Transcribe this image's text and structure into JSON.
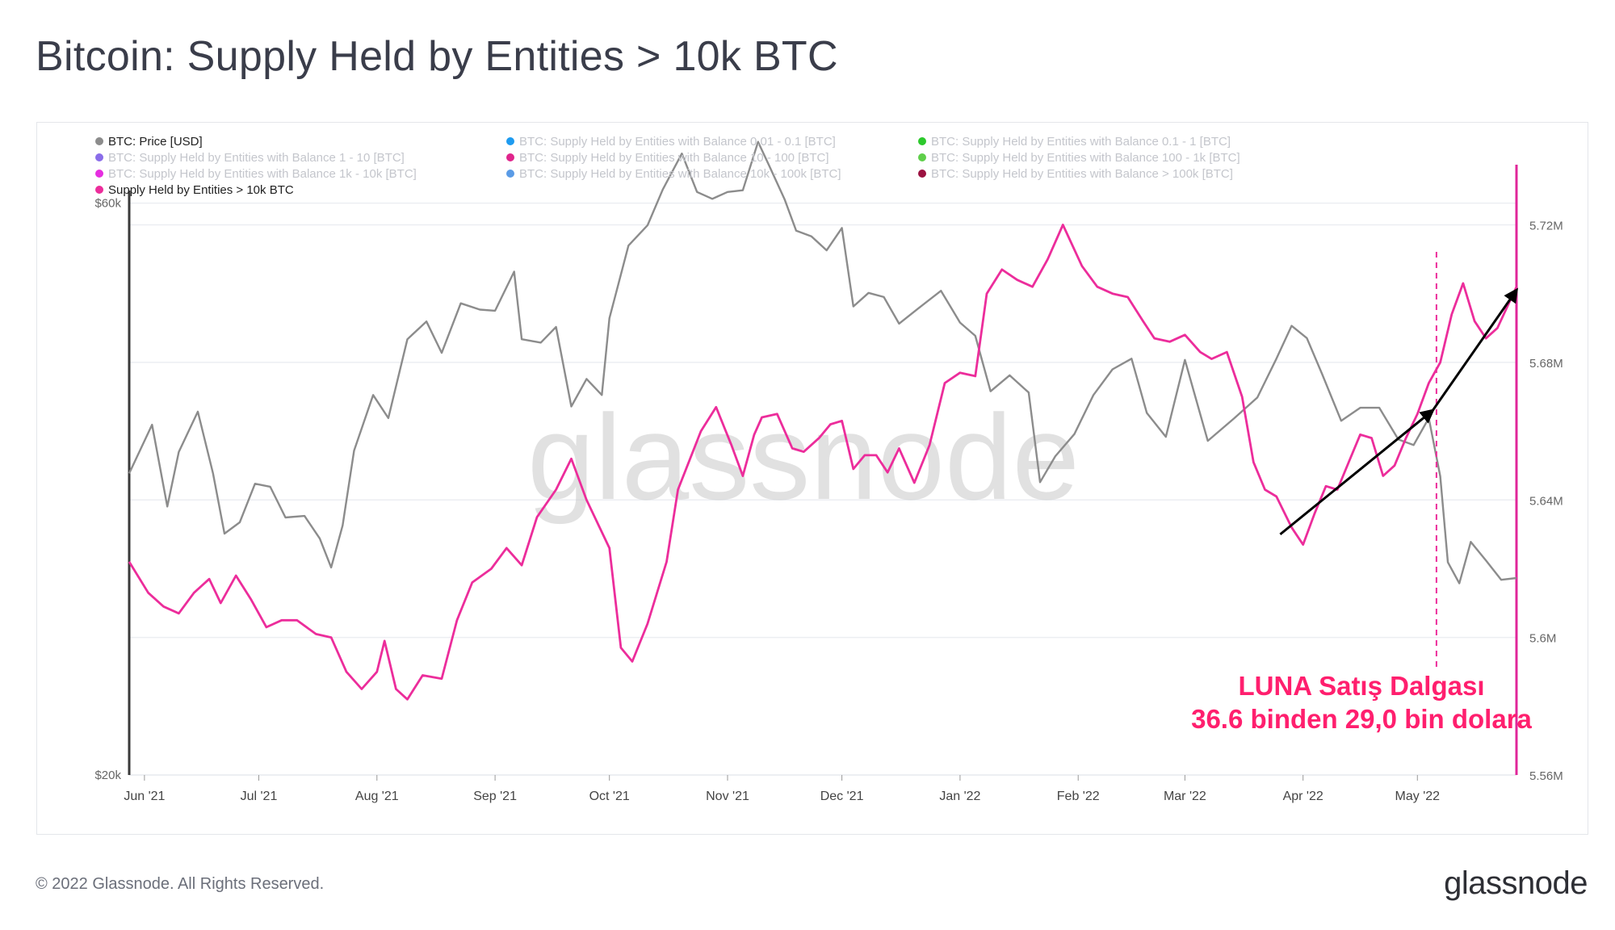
{
  "title": "Bitcoin: Supply Held by Entities > 10k BTC",
  "footer": "© 2022 Glassnode. All Rights Reserved.",
  "logo": "glassnode",
  "watermark": "glassnode",
  "annotation": {
    "line1": "LUNA Satış Dalgası",
    "line2": "36.6 binden 29,0 bin dolara",
    "color": "#ff1f6e"
  },
  "colors": {
    "price": "#8c8c8c",
    "supply": "#ec2d9b",
    "grid": "#eceef2",
    "axis": "#3a3a3a",
    "right_axis": "#e0279a"
  },
  "chart_data": {
    "type": "line",
    "title": "Bitcoin: Supply Held by Entities > 10k BTC",
    "x_range": [
      "2021-05-28",
      "2022-05-27"
    ],
    "x_ticks": [
      {
        "label": "Jun '21",
        "date": "2021-06-01"
      },
      {
        "label": "Jul '21",
        "date": "2021-07-01"
      },
      {
        "label": "Aug '21",
        "date": "2021-08-01"
      },
      {
        "label": "Sep '21",
        "date": "2021-09-01"
      },
      {
        "label": "Oct '21",
        "date": "2021-10-01"
      },
      {
        "label": "Nov '21",
        "date": "2021-11-01"
      },
      {
        "label": "Dec '21",
        "date": "2021-12-01"
      },
      {
        "label": "Jan '22",
        "date": "2022-01-01"
      },
      {
        "label": "Feb '22",
        "date": "2022-02-01"
      },
      {
        "label": "Mar '22",
        "date": "2022-03-01"
      },
      {
        "label": "Apr '22",
        "date": "2022-04-01"
      },
      {
        "label": "May '22",
        "date": "2022-05-01"
      }
    ],
    "y_left": {
      "label": "BTC: Price [USD]",
      "scale": "log",
      "ticks": [
        {
          "label": "$20k",
          "value": 20000
        },
        {
          "label": "$60k",
          "value": 60000
        }
      ],
      "range": [
        20000,
        64600
      ]
    },
    "y_right": {
      "label": "Supply Held by Entities > 10k BTC",
      "ticks": [
        {
          "label": "5.56M",
          "value": 5.56
        },
        {
          "label": "5.6M",
          "value": 5.6
        },
        {
          "label": "5.64M",
          "value": 5.64
        },
        {
          "label": "5.68M",
          "value": 5.68
        },
        {
          "label": "5.72M",
          "value": 5.72
        }
      ],
      "range": [
        5.56,
        5.7375
      ]
    },
    "legend": [
      {
        "label": "BTC: Price [USD]",
        "color": "#8c8c8c",
        "active": true
      },
      {
        "label": "BTC: Supply Held by Entities with Balance 0.01 - 0.1 [BTC]",
        "color": "#1e9bf0",
        "active": false
      },
      {
        "label": "BTC: Supply Held by Entities with Balance 0.1 - 1 [BTC]",
        "color": "#2cc92c",
        "active": false
      },
      {
        "label": "BTC: Supply Held by Entities with Balance 1 - 10 [BTC]",
        "color": "#8a6de9",
        "active": false
      },
      {
        "label": "BTC: Supply Held by Entities with Balance 10 - 100 [BTC]",
        "color": "#e0258c",
        "active": false
      },
      {
        "label": "BTC: Supply Held by Entities with Balance 100 - 1k [BTC]",
        "color": "#5fcf4a",
        "active": false
      },
      {
        "label": "BTC: Supply Held by Entities with Balance 1k - 10k [BTC]",
        "color": "#e62ee0",
        "active": false
      },
      {
        "label": "BTC: Supply Held by Entities with Balance 10k - 100k [BTC]",
        "color": "#5a9be6",
        "active": false
      },
      {
        "label": "BTC: Supply Held by Entities with Balance > 100k [BTC]",
        "color": "#9b1140",
        "active": false
      },
      {
        "label": "Supply Held by Entities > 10k BTC",
        "color": "#ec2d9b",
        "active": true
      }
    ],
    "series": [
      {
        "name": "BTC: Price [USD]",
        "axis": "left",
        "color": "#8c8c8c",
        "points": [
          [
            "2021-05-28",
            35700
          ],
          [
            "2021-06-03",
            39200
          ],
          [
            "2021-06-07",
            33500
          ],
          [
            "2021-06-10",
            37200
          ],
          [
            "2021-06-15",
            40200
          ],
          [
            "2021-06-19",
            35700
          ],
          [
            "2021-06-22",
            31800
          ],
          [
            "2021-06-26",
            32500
          ],
          [
            "2021-06-30",
            35000
          ],
          [
            "2021-07-04",
            34800
          ],
          [
            "2021-07-08",
            32800
          ],
          [
            "2021-07-13",
            32900
          ],
          [
            "2021-07-17",
            31500
          ],
          [
            "2021-07-20",
            29800
          ],
          [
            "2021-07-23",
            32300
          ],
          [
            "2021-07-26",
            37300
          ],
          [
            "2021-07-31",
            41500
          ],
          [
            "2021-08-04",
            39700
          ],
          [
            "2021-08-09",
            46200
          ],
          [
            "2021-08-14",
            47800
          ],
          [
            "2021-08-18",
            45000
          ],
          [
            "2021-08-23",
            49500
          ],
          [
            "2021-08-28",
            48900
          ],
          [
            "2021-09-01",
            48800
          ],
          [
            "2021-09-06",
            52600
          ],
          [
            "2021-09-08",
            46200
          ],
          [
            "2021-09-13",
            45900
          ],
          [
            "2021-09-17",
            47300
          ],
          [
            "2021-09-21",
            40600
          ],
          [
            "2021-09-25",
            42800
          ],
          [
            "2021-09-29",
            41500
          ],
          [
            "2021-10-01",
            48100
          ],
          [
            "2021-10-06",
            55300
          ],
          [
            "2021-10-11",
            57500
          ],
          [
            "2021-10-15",
            61600
          ],
          [
            "2021-10-20",
            66000
          ],
          [
            "2021-10-24",
            61300
          ],
          [
            "2021-10-28",
            60500
          ],
          [
            "2021-11-01",
            61300
          ],
          [
            "2021-11-05",
            61500
          ],
          [
            "2021-11-09",
            67500
          ],
          [
            "2021-11-12",
            64400
          ],
          [
            "2021-11-16",
            60400
          ],
          [
            "2021-11-19",
            56900
          ],
          [
            "2021-11-23",
            56300
          ],
          [
            "2021-11-27",
            54800
          ],
          [
            "2021-12-01",
            57200
          ],
          [
            "2021-12-04",
            49200
          ],
          [
            "2021-12-08",
            50500
          ],
          [
            "2021-12-12",
            50100
          ],
          [
            "2021-12-16",
            47600
          ],
          [
            "2021-12-21",
            49000
          ],
          [
            "2021-12-27",
            50700
          ],
          [
            "2022-01-01",
            47700
          ],
          [
            "2022-01-05",
            46500
          ],
          [
            "2022-01-09",
            41800
          ],
          [
            "2022-01-14",
            43100
          ],
          [
            "2022-01-19",
            41700
          ],
          [
            "2022-01-22",
            35100
          ],
          [
            "2022-01-26",
            36900
          ],
          [
            "2022-01-31",
            38500
          ],
          [
            "2022-02-05",
            41500
          ],
          [
            "2022-02-10",
            43600
          ],
          [
            "2022-02-15",
            44500
          ],
          [
            "2022-02-19",
            40100
          ],
          [
            "2022-02-24",
            38300
          ],
          [
            "2022-03-01",
            44400
          ],
          [
            "2022-03-07",
            38000
          ],
          [
            "2022-03-14",
            39700
          ],
          [
            "2022-03-20",
            41300
          ],
          [
            "2022-03-25",
            44500
          ],
          [
            "2022-03-29",
            47400
          ],
          [
            "2022-04-02",
            46300
          ],
          [
            "2022-04-06",
            43200
          ],
          [
            "2022-04-11",
            39500
          ],
          [
            "2022-04-16",
            40500
          ],
          [
            "2022-04-21",
            40500
          ],
          [
            "2022-04-26",
            38100
          ],
          [
            "2022-04-30",
            37700
          ],
          [
            "2022-05-04",
            39700
          ],
          [
            "2022-05-07",
            35500
          ],
          [
            "2022-05-09",
            30100
          ],
          [
            "2022-05-12",
            28900
          ],
          [
            "2022-05-15",
            31300
          ],
          [
            "2022-05-19",
            30200
          ],
          [
            "2022-05-23",
            29100
          ],
          [
            "2022-05-27",
            29200
          ]
        ]
      },
      {
        "name": "Supply Held by Entities > 10k BTC",
        "axis": "right",
        "color": "#ec2d9b",
        "points": [
          [
            "2021-05-28",
            5.622
          ],
          [
            "2021-06-02",
            5.613
          ],
          [
            "2021-06-06",
            5.609
          ],
          [
            "2021-06-10",
            5.607
          ],
          [
            "2021-06-14",
            5.613
          ],
          [
            "2021-06-18",
            5.617
          ],
          [
            "2021-06-21",
            5.61
          ],
          [
            "2021-06-25",
            5.618
          ],
          [
            "2021-06-29",
            5.611
          ],
          [
            "2021-07-03",
            5.603
          ],
          [
            "2021-07-07",
            5.605
          ],
          [
            "2021-07-11",
            5.605
          ],
          [
            "2021-07-16",
            5.601
          ],
          [
            "2021-07-20",
            5.6
          ],
          [
            "2021-07-24",
            5.59
          ],
          [
            "2021-07-28",
            5.585
          ],
          [
            "2021-08-01",
            5.59
          ],
          [
            "2021-08-03",
            5.599
          ],
          [
            "2021-08-06",
            5.585
          ],
          [
            "2021-08-09",
            5.582
          ],
          [
            "2021-08-13",
            5.589
          ],
          [
            "2021-08-18",
            5.588
          ],
          [
            "2021-08-22",
            5.605
          ],
          [
            "2021-08-26",
            5.616
          ],
          [
            "2021-08-31",
            5.62
          ],
          [
            "2021-09-04",
            5.626
          ],
          [
            "2021-09-08",
            5.621
          ],
          [
            "2021-09-12",
            5.635
          ],
          [
            "2021-09-17",
            5.643
          ],
          [
            "2021-09-21",
            5.652
          ],
          [
            "2021-09-25",
            5.64
          ],
          [
            "2021-10-01",
            5.626
          ],
          [
            "2021-10-04",
            5.597
          ],
          [
            "2021-10-07",
            5.593
          ],
          [
            "2021-10-11",
            5.604
          ],
          [
            "2021-10-16",
            5.622
          ],
          [
            "2021-10-19",
            5.643
          ],
          [
            "2021-10-25",
            5.66
          ],
          [
            "2021-10-29",
            5.667
          ],
          [
            "2021-11-02",
            5.656
          ],
          [
            "2021-11-05",
            5.647
          ],
          [
            "2021-11-08",
            5.659
          ],
          [
            "2021-11-10",
            5.664
          ],
          [
            "2021-11-14",
            5.665
          ],
          [
            "2021-11-18",
            5.655
          ],
          [
            "2021-11-21",
            5.654
          ],
          [
            "2021-11-25",
            5.658
          ],
          [
            "2021-11-28",
            5.662
          ],
          [
            "2021-12-01",
            5.663
          ],
          [
            "2021-12-04",
            5.649
          ],
          [
            "2021-12-07",
            5.653
          ],
          [
            "2021-12-10",
            5.653
          ],
          [
            "2021-12-13",
            5.648
          ],
          [
            "2021-12-16",
            5.655
          ],
          [
            "2021-12-20",
            5.645
          ],
          [
            "2021-12-24",
            5.656
          ],
          [
            "2021-12-28",
            5.674
          ],
          [
            "2022-01-01",
            5.677
          ],
          [
            "2022-01-05",
            5.676
          ],
          [
            "2022-01-08",
            5.7
          ],
          [
            "2022-01-12",
            5.707
          ],
          [
            "2022-01-16",
            5.704
          ],
          [
            "2022-01-20",
            5.702
          ],
          [
            "2022-01-24",
            5.71
          ],
          [
            "2022-01-28",
            5.72
          ],
          [
            "2022-02-02",
            5.708
          ],
          [
            "2022-02-06",
            5.702
          ],
          [
            "2022-02-10",
            5.7
          ],
          [
            "2022-02-14",
            5.699
          ],
          [
            "2022-02-18",
            5.692
          ],
          [
            "2022-02-21",
            5.687
          ],
          [
            "2022-02-25",
            5.686
          ],
          [
            "2022-03-01",
            5.688
          ],
          [
            "2022-03-05",
            5.683
          ],
          [
            "2022-03-08",
            5.681
          ],
          [
            "2022-03-12",
            5.683
          ],
          [
            "2022-03-16",
            5.67
          ],
          [
            "2022-03-19",
            5.651
          ],
          [
            "2022-03-22",
            5.643
          ],
          [
            "2022-03-25",
            5.641
          ],
          [
            "2022-03-29",
            5.632
          ],
          [
            "2022-04-01",
            5.627
          ],
          [
            "2022-04-04",
            5.636
          ],
          [
            "2022-04-07",
            5.644
          ],
          [
            "2022-04-10",
            5.643
          ],
          [
            "2022-04-13",
            5.651
          ],
          [
            "2022-04-16",
            5.659
          ],
          [
            "2022-04-19",
            5.658
          ],
          [
            "2022-04-22",
            5.647
          ],
          [
            "2022-04-25",
            5.65
          ],
          [
            "2022-04-28",
            5.658
          ],
          [
            "2022-05-01",
            5.665
          ],
          [
            "2022-05-04",
            5.674
          ],
          [
            "2022-05-07",
            5.68
          ],
          [
            "2022-05-10",
            5.694
          ],
          [
            "2022-05-13",
            5.703
          ],
          [
            "2022-05-16",
            5.692
          ],
          [
            "2022-05-19",
            5.687
          ],
          [
            "2022-05-22",
            5.69
          ],
          [
            "2022-05-27",
            5.702
          ]
        ]
      }
    ],
    "event_marker": {
      "date": "2022-05-06",
      "style": "dashed"
    },
    "arrows": [
      {
        "from": [
          "2022-03-26",
          5.63
        ],
        "to": [
          "2022-05-05",
          5.666
        ]
      },
      {
        "from": [
          "2022-05-05",
          5.666
        ],
        "to": [
          "2022-05-27",
          5.701
        ]
      }
    ]
  }
}
